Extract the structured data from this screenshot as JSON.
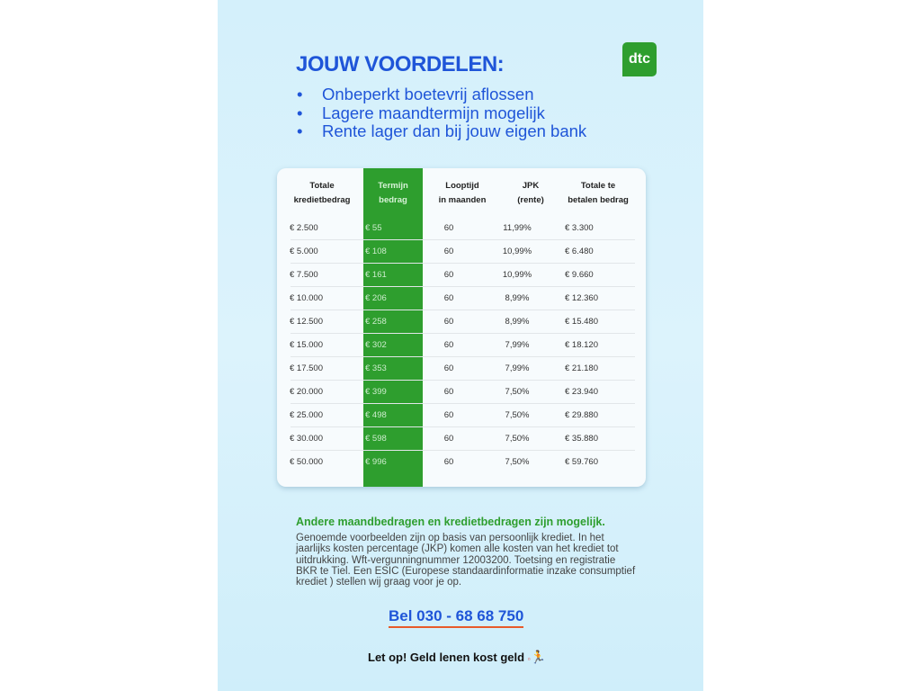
{
  "title": "JOUW VOORDELEN:",
  "logo": "dtc",
  "bullets": [
    "Onbeperkt boetevrij aflossen",
    "Lagere maandtermijn mogelijk",
    "Rente lager dan bij jouw eigen bank"
  ],
  "table": {
    "headers": [
      [
        "Totale",
        "kredietbedrag"
      ],
      [
        "Termijn",
        "bedrag"
      ],
      [
        "Looptijd",
        "in maanden"
      ],
      [
        "JPK",
        "(rente)"
      ],
      [
        "Totale te",
        "betalen bedrag"
      ]
    ],
    "rows": [
      [
        "€ 2.500",
        "€ 55",
        "60",
        "11,99%",
        "€ 3.300"
      ],
      [
        "€ 5.000",
        "€ 108",
        "60",
        "10,99%",
        "€ 6.480"
      ],
      [
        "€ 7.500",
        "€ 161",
        "60",
        "10,99%",
        "€ 9.660"
      ],
      [
        "€ 10.000",
        "€ 206",
        "60",
        "8,99%",
        "€ 12.360"
      ],
      [
        "€ 12.500",
        "€ 258",
        "60",
        "8,99%",
        "€ 15.480"
      ],
      [
        "€ 15.000",
        "€ 302",
        "60",
        "7,99%",
        "€ 18.120"
      ],
      [
        "€ 17.500",
        "€ 353",
        "60",
        "7,99%",
        "€ 21.180"
      ],
      [
        "€ 20.000",
        "€ 399",
        "60",
        "7,50%",
        "€ 23.940"
      ],
      [
        "€ 25.000",
        "€ 498",
        "60",
        "7,50%",
        "€ 29.880"
      ],
      [
        "€ 30.000",
        "€ 598",
        "60",
        "7,50%",
        "€ 35.880"
      ],
      [
        "€ 50.000",
        "€ 996",
        "60",
        "7,50%",
        "€ 59.760"
      ]
    ]
  },
  "subheading": "Andere maandbedragen en kredietbedragen zijn mogelijk.",
  "legal": "Genoemde voorbeelden zijn op basis van persoonlijk krediet. In het jaarlijks kosten percentage (JKP) komen alle kosten van het krediet tot uitdrukking. Wft-vergunningnummer 12003200. Toetsing en registratie BKR te Tiel. Een ESIC (Europese standaardinformatie inzake consumptief krediet ) stellen wij graag voor je op.",
  "phone": "Bel 030 - 68 68 750",
  "warning": "Let op! Geld lenen kost geld",
  "colors": {
    "blue": "#1f55d8",
    "green": "#2e9e2e",
    "underline": "#e85a2a"
  },
  "icons": {
    "warning": "running-man-with-ball-and-chain-icon"
  }
}
